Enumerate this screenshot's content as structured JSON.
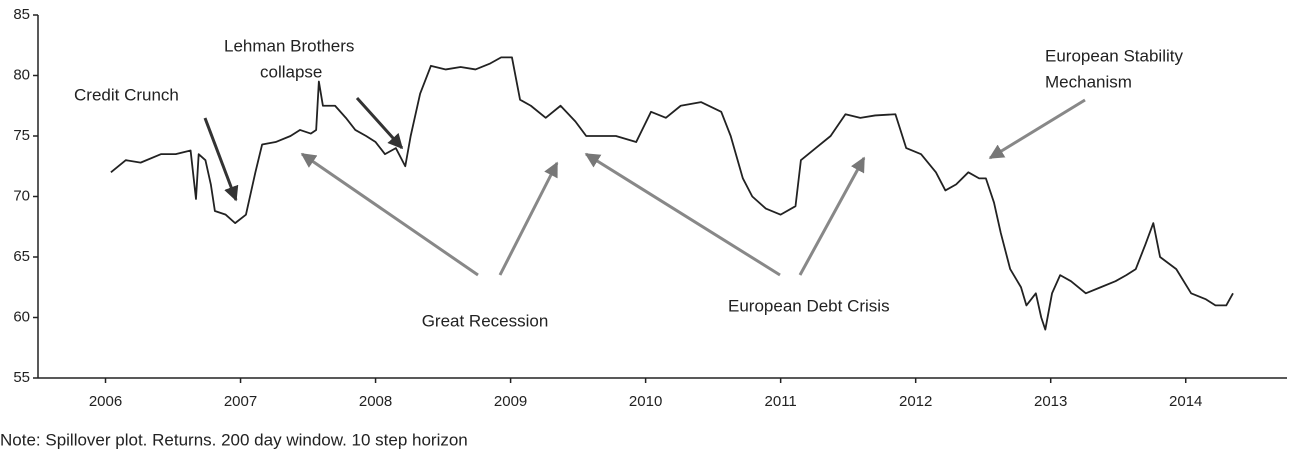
{
  "chart_data": {
    "type": "line",
    "x": [
      2006.54,
      2006.65,
      2006.76,
      2006.91,
      2007.02,
      2007.13,
      2007.17,
      2007.19,
      2007.24,
      2007.28,
      2007.31,
      2007.39,
      2007.46,
      2007.54,
      2007.61,
      2007.66,
      2007.76,
      2007.87,
      2007.94,
      2008.02,
      2008.06,
      2008.08,
      2008.11,
      2008.2,
      2008.28,
      2008.35,
      2008.43,
      2008.5,
      2008.57,
      2008.65,
      2008.72,
      2008.76,
      2008.83,
      2008.91,
      2009.02,
      2009.13,
      2009.24,
      2009.35,
      2009.43,
      2009.51,
      2009.57,
      2009.65,
      2009.76,
      2009.87,
      2009.98,
      2010.06,
      2010.17,
      2010.28,
      2010.43,
      2010.54,
      2010.65,
      2010.76,
      2010.91,
      2011.06,
      2011.13,
      2011.22,
      2011.29,
      2011.39,
      2011.5,
      2011.61,
      2011.65,
      2011.76,
      2011.87,
      2011.98,
      2012.09,
      2012.2,
      2012.35,
      2012.43,
      2012.54,
      2012.65,
      2012.72,
      2012.8,
      2012.89,
      2012.97,
      2013.02,
      2013.08,
      2013.13,
      2013.2,
      2013.28,
      2013.32,
      2013.39,
      2013.43,
      2013.46,
      2013.51,
      2013.57,
      2013.65,
      2013.76,
      2013.87,
      2013.98,
      2014.06,
      2014.13,
      2014.2,
      2014.26,
      2014.31,
      2014.43,
      2014.54,
      2014.65,
      2014.72,
      2014.8,
      2014.85
    ],
    "values": [
      72,
      73,
      72.8,
      73.5,
      73.5,
      73.8,
      69.8,
      73.5,
      73,
      71,
      68.8,
      68.5,
      67.8,
      68.5,
      72,
      74.3,
      74.5,
      75,
      75.5,
      75.2,
      75.5,
      79.5,
      77.5,
      77.5,
      76.5,
      75.5,
      75,
      74.5,
      73.5,
      74,
      72.5,
      75,
      78.5,
      80.8,
      80.5,
      80.7,
      80.5,
      81,
      81.5,
      81.5,
      78,
      77.5,
      76.5,
      77.5,
      76.2,
      75,
      75,
      75,
      74.5,
      77,
      76.5,
      77.5,
      77.8,
      77,
      75,
      71.5,
      70,
      69,
      68.5,
      69.2,
      73,
      74,
      75,
      76.8,
      76.5,
      76.7,
      76.8,
      74,
      73.5,
      72,
      70.5,
      71,
      72,
      71.5,
      71.5,
      69.5,
      67,
      64,
      62.5,
      61,
      62,
      60,
      59,
      62,
      63.5,
      63,
      62,
      62.5,
      63,
      63.5,
      64,
      66,
      67.8,
      65,
      64,
      62,
      61.5,
      61,
      61,
      62
    ],
    "color": "#222222",
    "xlim": [
      2006,
      2015.25
    ],
    "xticks": [
      {
        "value": 2006.5,
        "label": "2006"
      },
      {
        "value": 2007.5,
        "label": "2007"
      },
      {
        "value": 2008.5,
        "label": "2008"
      },
      {
        "value": 2009.5,
        "label": "2009"
      },
      {
        "value": 2010.5,
        "label": "2010"
      },
      {
        "value": 2011.5,
        "label": "2011"
      },
      {
        "value": 2012.5,
        "label": "2012"
      },
      {
        "value": 2013.5,
        "label": "2013"
      },
      {
        "value": 2014.5,
        "label": "2014"
      }
    ],
    "ylim": [
      55,
      85
    ],
    "yticks": [
      55,
      60,
      65,
      70,
      75,
      80,
      85
    ],
    "grid": false,
    "annotations": [
      [
        "Credit Crunch"
      ],
      [
        "Lehman Brothers",
        "collapse"
      ],
      [
        "Great Recession"
      ],
      [
        "European Debt Crisis"
      ],
      [
        "European Stability",
        "Mechanism"
      ]
    ],
    "note": "Note: Spillover plot. Returns. 200 day window. 10 step horizon"
  }
}
